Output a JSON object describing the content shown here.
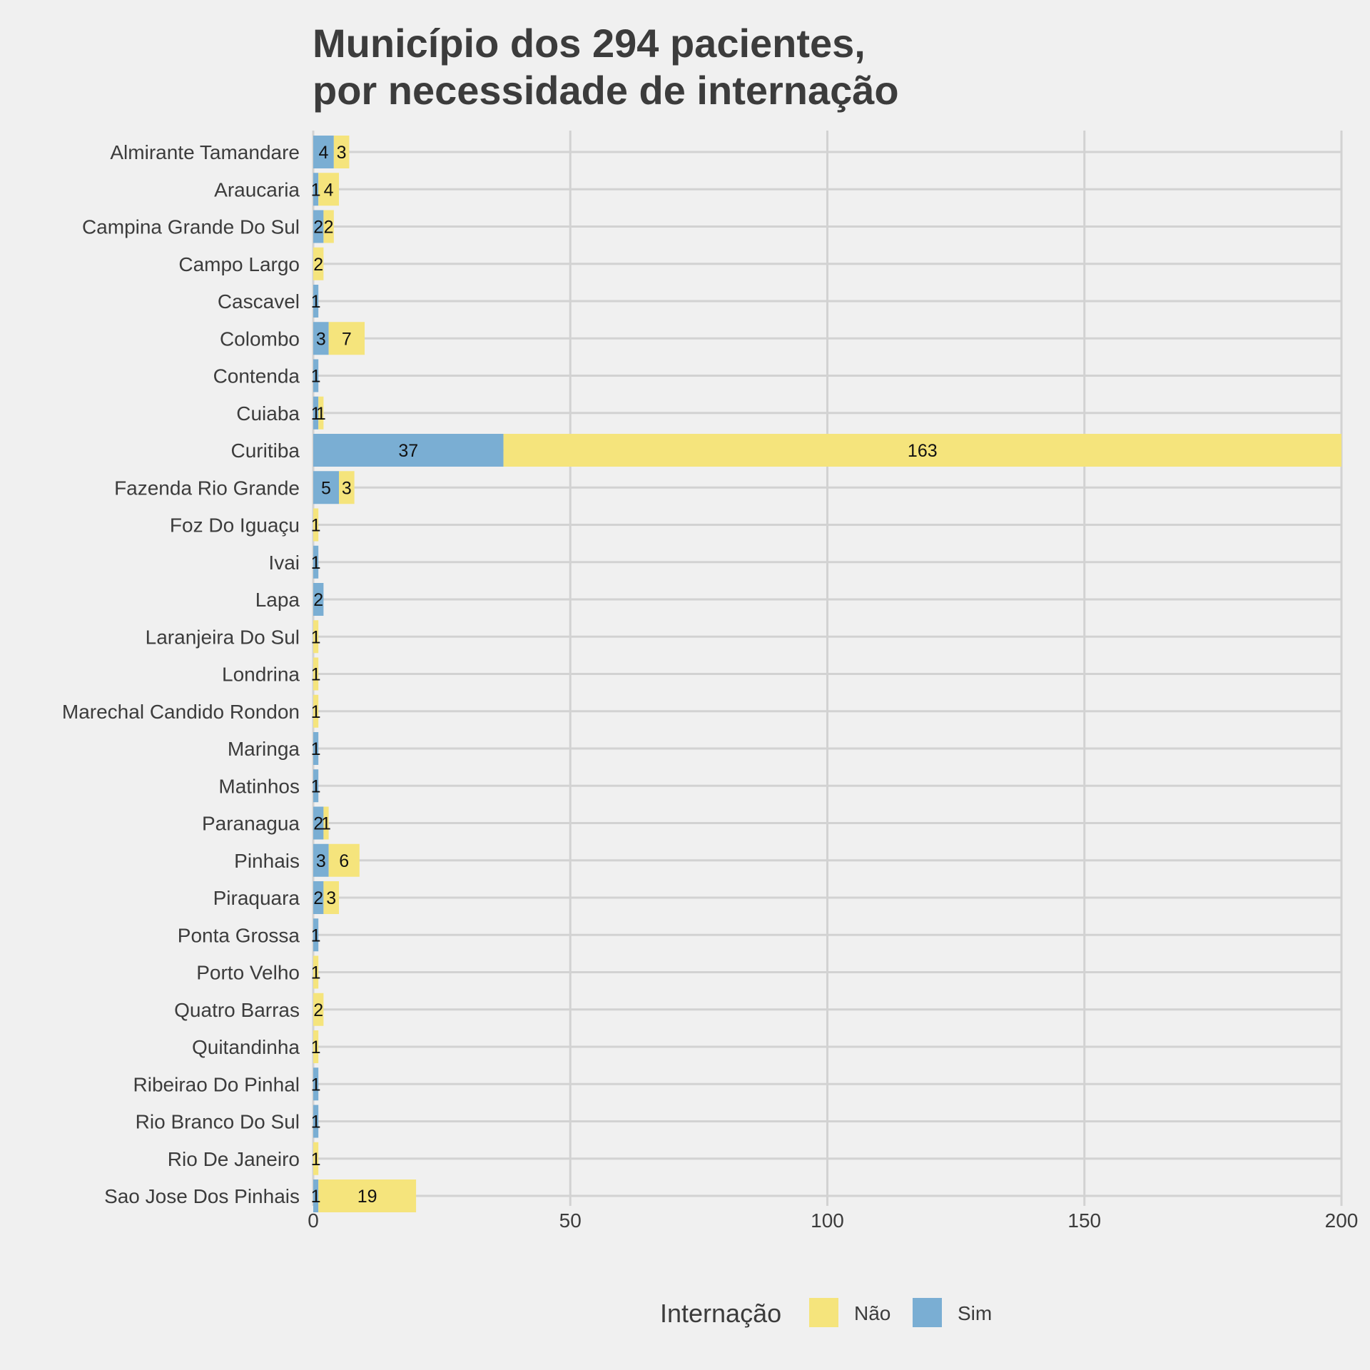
{
  "chart_data": {
    "type": "bar",
    "orientation": "horizontal",
    "stacked": true,
    "title": [
      "Município dos 294 pacientes,",
      "por necessidade de internação"
    ],
    "xlim": [
      0,
      200
    ],
    "x_ticks": [
      0,
      50,
      100,
      150,
      200
    ],
    "grid": true,
    "legend": {
      "title": "Internação",
      "position": "bottom",
      "entries": [
        {
          "label": "Não",
          "color": "#f5e47c"
        },
        {
          "label": "Sim",
          "color": "#7aaed3"
        }
      ]
    },
    "categories": [
      "Almirante Tamandare",
      "Araucaria",
      "Campina Grande Do Sul",
      "Campo Largo",
      "Cascavel",
      "Colombo",
      "Contenda",
      "Cuiaba",
      "Curitiba",
      "Fazenda Rio Grande",
      "Foz Do Iguaçu",
      "Ivai",
      "Lapa",
      "Laranjeira Do Sul",
      "Londrina",
      "Marechal Candido Rondon",
      "Maringa",
      "Matinhos",
      "Paranagua",
      "Pinhais",
      "Piraquara",
      "Ponta Grossa",
      "Porto Velho",
      "Quatro Barras",
      "Quitandinha",
      "Ribeirao Do Pinhal",
      "Rio Branco Do Sul",
      "Rio De Janeiro",
      "Sao Jose Dos Pinhais"
    ],
    "series": [
      {
        "name": "Sim",
        "color": "#7aaed3",
        "values": [
          4,
          1,
          2,
          0,
          1,
          3,
          1,
          1,
          37,
          5,
          0,
          1,
          2,
          0,
          0,
          0,
          1,
          1,
          2,
          3,
          2,
          1,
          0,
          0,
          0,
          1,
          1,
          0,
          1
        ]
      },
      {
        "name": "Não",
        "color": "#f5e47c",
        "values": [
          3,
          4,
          2,
          2,
          0,
          7,
          0,
          1,
          163,
          3,
          1,
          0,
          0,
          1,
          1,
          1,
          0,
          0,
          1,
          6,
          3,
          0,
          1,
          2,
          1,
          0,
          0,
          1,
          19
        ]
      }
    ]
  }
}
